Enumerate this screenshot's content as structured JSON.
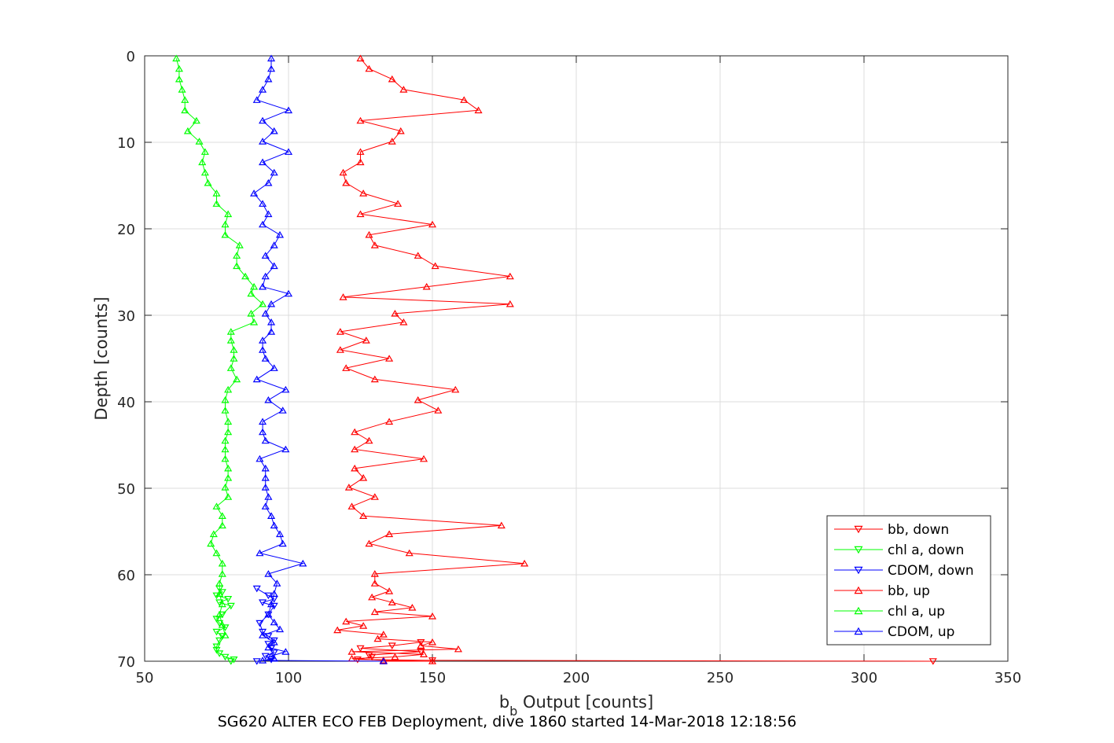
{
  "chart_data": {
    "type": "line",
    "xlabel_main": "b",
    "xlabel_sub": "b",
    "xlabel_rest": " Output [counts]",
    "ylabel": "Depth [counts]",
    "caption": "SG620 ALTER ECO FEB Deployment, dive 1860 started 14-Mar-2018 12:18:56",
    "xlim": [
      50,
      350
    ],
    "ylim": [
      0,
      70
    ],
    "y_reversed": true,
    "xticks": [
      50,
      100,
      150,
      200,
      250,
      300,
      350
    ],
    "yticks": [
      0,
      10,
      20,
      30,
      40,
      50,
      60,
      70
    ],
    "grid": true,
    "legend_position": "bottom-right",
    "series": [
      {
        "name": "bb, down",
        "color": "#ff0000",
        "marker": "triangle-down",
        "x": [
          324,
          150,
          124,
          129,
          128,
          146,
          125,
          136,
          146
        ],
        "y": [
          70.0,
          69.9,
          69.8,
          69.5,
          69.3,
          68.9,
          68.5,
          68.2,
          67.8
        ]
      },
      {
        "name": "chl a, down",
        "color": "#00ff00",
        "marker": "triangle-down",
        "x": [
          80,
          81,
          78,
          76,
          75,
          75,
          76,
          77,
          75,
          78,
          76,
          75,
          77,
          80,
          76,
          79,
          75,
          77,
          76
        ],
        "y": [
          70.0,
          69.8,
          69.5,
          69.1,
          68.7,
          68.3,
          67.6,
          67.1,
          66.6,
          66.1,
          65.6,
          65.1,
          64.6,
          63.6,
          63.2,
          62.8,
          62.4,
          62.0,
          61.6
        ]
      },
      {
        "name": "CDOM, down",
        "color": "#0000ff",
        "marker": "triangle-down",
        "x": [
          89,
          94,
          92,
          95,
          94,
          93,
          95,
          93,
          91,
          90,
          93,
          95,
          91,
          95,
          93,
          89
        ],
        "y": [
          70.0,
          69.8,
          69.4,
          69.0,
          68.5,
          68.0,
          67.6,
          67.1,
          66.6,
          65.6,
          64.6,
          63.6,
          63.2,
          62.8,
          62.4,
          61.6
        ]
      },
      {
        "name": "bb, up",
        "color": "#ff0000",
        "marker": "triangle-up",
        "x": [
          125,
          128,
          136,
          140,
          161,
          166,
          125,
          139,
          136,
          125,
          125,
          119,
          120,
          126,
          138,
          125,
          150,
          128,
          130,
          145,
          151,
          177,
          148,
          119,
          177,
          137,
          140,
          118,
          127,
          118,
          135,
          120,
          130,
          158,
          145,
          152,
          135,
          123,
          128,
          123,
          147,
          123,
          126,
          121,
          130,
          122,
          126,
          174,
          135,
          128,
          142,
          182,
          130,
          130,
          135,
          129,
          136,
          143,
          130,
          150,
          120,
          126,
          117,
          133,
          131,
          150,
          146,
          159,
          122,
          147,
          137,
          122,
          133,
          150,
          133
        ],
        "y": [
          0.3,
          1.5,
          2.7,
          3.9,
          5.1,
          6.3,
          7.5,
          8.7,
          9.9,
          11.1,
          12.3,
          13.5,
          14.7,
          15.9,
          17.1,
          18.3,
          19.5,
          20.7,
          21.9,
          23.1,
          24.3,
          25.5,
          26.7,
          27.9,
          28.7,
          29.8,
          30.8,
          31.9,
          32.9,
          34.0,
          35.0,
          36.1,
          37.4,
          38.6,
          39.8,
          41.0,
          42.3,
          43.5,
          44.5,
          45.5,
          46.6,
          47.7,
          48.8,
          49.9,
          51.0,
          52.1,
          53.2,
          54.3,
          55.3,
          56.4,
          57.5,
          58.7,
          59.9,
          61.0,
          61.9,
          62.6,
          63.2,
          63.8,
          64.3,
          64.8,
          65.4,
          65.9,
          66.4,
          66.9,
          67.4,
          67.8,
          68.2,
          68.6,
          68.9,
          69.2,
          69.5,
          69.7,
          69.9,
          70.0,
          70.0
        ]
      },
      {
        "name": "chl a, up",
        "color": "#00ff00",
        "marker": "triangle-up",
        "x": [
          61,
          62,
          62,
          63,
          64,
          64,
          68,
          65,
          69,
          71,
          70,
          71,
          72,
          75,
          75,
          79,
          78,
          78,
          83,
          82,
          82,
          85,
          88,
          87,
          91,
          87,
          88,
          80,
          80,
          81,
          81,
          80,
          82,
          79,
          78,
          78,
          79,
          79,
          78,
          78,
          78,
          79,
          79,
          78,
          79,
          75,
          77,
          77,
          74,
          73,
          75,
          77,
          77,
          76,
          76,
          77,
          76,
          77,
          78
        ],
        "y": [
          0.3,
          1.5,
          2.7,
          3.9,
          5.1,
          6.3,
          7.5,
          8.7,
          9.9,
          11.1,
          12.3,
          13.5,
          14.7,
          15.9,
          17.1,
          18.3,
          19.5,
          20.7,
          21.9,
          23.1,
          24.3,
          25.5,
          26.7,
          27.5,
          28.7,
          29.8,
          30.8,
          31.9,
          32.9,
          34.0,
          35.0,
          36.1,
          37.4,
          38.6,
          39.8,
          41.0,
          42.3,
          43.5,
          44.5,
          45.5,
          46.6,
          47.7,
          48.8,
          49.9,
          51.0,
          52.1,
          53.2,
          54.3,
          55.3,
          56.4,
          57.5,
          58.7,
          59.9,
          61.0,
          62.2,
          63.4,
          64.6,
          65.8,
          67.0
        ]
      },
      {
        "name": "CDOM, up",
        "color": "#0000ff",
        "marker": "triangle-up",
        "x": [
          94,
          94,
          93,
          91,
          89,
          100,
          91,
          95,
          91,
          100,
          91,
          95,
          93,
          88,
          91,
          93,
          91,
          97,
          95,
          92,
          95,
          92,
          91,
          100,
          94,
          92,
          94,
          94,
          91,
          91,
          92,
          95,
          89,
          99,
          93,
          98,
          91,
          91,
          92,
          99,
          90,
          92,
          92,
          92,
          93,
          92,
          94,
          95,
          97,
          98,
          90,
          105,
          93,
          96,
          95,
          94,
          93,
          95,
          97,
          91,
          95,
          93,
          99,
          94,
          95,
          91,
          133
        ],
        "y": [
          0.3,
          1.5,
          2.7,
          3.9,
          5.1,
          6.3,
          7.5,
          8.7,
          9.9,
          11.1,
          12.3,
          13.5,
          14.7,
          15.9,
          17.1,
          18.3,
          19.5,
          20.7,
          21.9,
          23.1,
          24.3,
          25.5,
          26.7,
          27.5,
          28.7,
          29.8,
          30.8,
          31.9,
          32.9,
          34.0,
          35.0,
          36.1,
          37.4,
          38.6,
          39.8,
          41.0,
          42.3,
          43.5,
          44.5,
          45.5,
          46.6,
          47.7,
          48.8,
          49.9,
          51.0,
          52.1,
          53.2,
          54.3,
          55.3,
          56.4,
          57.5,
          58.7,
          59.9,
          61.0,
          62.2,
          63.4,
          64.6,
          65.5,
          66.3,
          67.0,
          67.8,
          68.4,
          68.9,
          69.4,
          69.7,
          69.9,
          70.0
        ]
      }
    ]
  }
}
